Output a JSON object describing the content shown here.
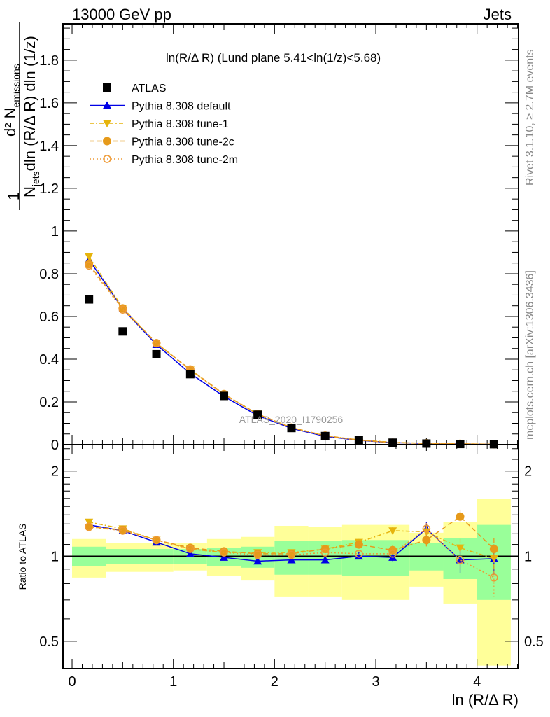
{
  "chart_data": [
    {
      "type": "scatter",
      "panel": "main",
      "header_left": "13000 GeV pp",
      "header_right": "Jets",
      "title": "ln(R/Δ R) (Lund plane 5.41<ln(1/z)<5.68)",
      "ylabel_num": "d² N",
      "ylabel_num_sub": "emissions",
      "ylabel_one": "1",
      "ylabel_den_N": "N",
      "ylabel_den_sub": "jets",
      "ylabel_den_rest": "dln (R/Δ R) dln (1/z)",
      "side_text_1": "Rivet 3.1.10, ≥ 2.7M events",
      "side_text_2": "mcplots.cern.ch [arXiv:1306.3436]",
      "watermark": "ATLAS_2020_I1790256",
      "xlim": [
        -0.09,
        4.41
      ],
      "ylim": [
        0,
        1.97
      ],
      "yticks": [
        0,
        0.2,
        0.4,
        0.6,
        0.8,
        1,
        1.2,
        1.4,
        1.6,
        1.8
      ],
      "ytick_labels": [
        "0",
        "0.2",
        "0.4",
        "0.6",
        "0.8",
        "1",
        "1.2",
        "1.4",
        "1.6",
        "1.8"
      ],
      "x": [
        0.167,
        0.5,
        0.833,
        1.167,
        1.5,
        1.833,
        2.167,
        2.5,
        2.833,
        3.167,
        3.5,
        3.833,
        4.167
      ],
      "legend": [
        "ATLAS",
        "Pythia 8.308 default",
        "Pythia 8.308 tune-1",
        "Pythia 8.308 tune-2c",
        "Pythia 8.308 tune-2m"
      ],
      "legend_position": "top-left",
      "series": [
        {
          "name": "ATLAS",
          "color": "#000000",
          "marker": "square",
          "line": "none",
          "values": [
            0.68,
            0.53,
            0.423,
            0.33,
            0.228,
            0.14,
            0.078,
            0.04,
            0.02,
            0.009,
            0.005,
            0.003,
            0.002
          ]
        },
        {
          "name": "Pythia 8.308 default",
          "color": "#0000e6",
          "marker": "triangle-up",
          "line": "solid",
          "values": [
            0.866,
            0.636,
            0.468,
            0.333,
            0.226,
            0.136,
            0.076,
            0.039,
            0.02,
            0.009,
            0.006,
            0.003,
            0.002
          ]
        },
        {
          "name": "Pythia 8.308 tune-1",
          "color": "#e6b40c",
          "marker": "triangle-down",
          "line": "dashdot",
          "values": [
            0.88,
            0.64,
            0.475,
            0.35,
            0.235,
            0.144,
            0.08,
            0.042,
            0.022,
            0.011,
            0.006,
            0.003,
            0.002
          ]
        },
        {
          "name": "Pythia 8.308 tune-2c",
          "color": "#e69a1a",
          "marker": "circle",
          "line": "dashed",
          "values": [
            0.845,
            0.638,
            0.475,
            0.352,
            0.237,
            0.143,
            0.08,
            0.042,
            0.022,
            0.009,
            0.006,
            0.004,
            0.002
          ]
        },
        {
          "name": "Pythia 8.308 tune-2m",
          "color": "#ee9933",
          "marker": "open-circle",
          "line": "dotted",
          "values": [
            0.838,
            0.632,
            0.474,
            0.35,
            0.235,
            0.141,
            0.079,
            0.041,
            0.02,
            0.009,
            0.006,
            0.003,
            0.002
          ]
        }
      ]
    },
    {
      "type": "line",
      "panel": "ratio",
      "ylabel": "Ratio to ATLAS",
      "xlabel": "ln (R/Δ R)",
      "yscale": "log",
      "xlim": [
        -0.09,
        4.41
      ],
      "ylim": [
        0.4,
        2.48
      ],
      "yticks": [
        0.5,
        1,
        2
      ],
      "ytick_labels": [
        "0.5",
        "1",
        "2"
      ],
      "xticks": [
        0,
        1,
        2,
        3,
        4
      ],
      "xtick_labels": [
        "0",
        "1",
        "2",
        "3",
        "4"
      ],
      "bin_edges": [
        0,
        0.333,
        0.667,
        1,
        1.333,
        1.667,
        2,
        2.333,
        2.667,
        3,
        3.333,
        3.667,
        4,
        4.333
      ],
      "band_inner": {
        "color": "#99ff99",
        "low": [
          0.92,
          0.94,
          0.94,
          0.94,
          0.92,
          0.91,
          0.86,
          0.86,
          0.85,
          0.85,
          0.89,
          0.83,
          0.7
        ],
        "high": [
          1.08,
          1.06,
          1.06,
          1.06,
          1.07,
          1.08,
          1.13,
          1.13,
          1.14,
          1.14,
          1.11,
          1.16,
          1.29
        ]
      },
      "band_outer": {
        "color": "#ffff99",
        "low": [
          0.84,
          0.88,
          0.88,
          0.89,
          0.85,
          0.82,
          0.72,
          0.72,
          0.7,
          0.7,
          0.78,
          0.68,
          0.41
        ],
        "high": [
          1.15,
          1.11,
          1.11,
          1.11,
          1.15,
          1.17,
          1.28,
          1.27,
          1.29,
          1.29,
          1.21,
          1.32,
          1.59
        ]
      },
      "x": [
        0.167,
        0.5,
        0.833,
        1.167,
        1.5,
        1.833,
        2.167,
        2.5,
        2.833,
        3.167,
        3.5,
        3.833,
        4.167
      ],
      "series": [
        {
          "name": "Pythia 8.308 default",
          "color": "#0000e6",
          "marker": "triangle-up",
          "line": "solid",
          "values": [
            1.29,
            1.23,
            1.12,
            1.02,
            0.99,
            0.96,
            0.97,
            0.97,
            1.0,
            0.99,
            1.25,
            0.97,
            0.98
          ],
          "err": [
            0.01,
            0.01,
            0.01,
            0.01,
            0.01,
            0.01,
            0.01,
            0.01,
            0.02,
            0.03,
            0.07,
            0.1,
            0.12
          ]
        },
        {
          "name": "Pythia 8.308 tune-1",
          "color": "#e6b40c",
          "marker": "triangle-down",
          "line": "dashdot",
          "values": [
            1.32,
            1.25,
            1.14,
            1.06,
            1.03,
            1.03,
            1.03,
            1.06,
            1.12,
            1.23,
            1.22,
            1.07,
            0.98
          ],
          "err": [
            0.01,
            0.01,
            0.01,
            0.01,
            0.01,
            0.01,
            0.01,
            0.02,
            0.03,
            0.04,
            0.06,
            0.08,
            0.12
          ]
        },
        {
          "name": "Pythia 8.308 tune-2c",
          "color": "#e69a1a",
          "marker": "circle",
          "line": "dashed",
          "values": [
            1.27,
            1.24,
            1.14,
            1.07,
            1.04,
            1.02,
            1.02,
            1.06,
            1.1,
            1.05,
            1.14,
            1.38,
            1.06
          ],
          "err": [
            0.01,
            0.01,
            0.01,
            0.01,
            0.01,
            0.01,
            0.01,
            0.02,
            0.03,
            0.04,
            0.06,
            0.08,
            0.1
          ]
        },
        {
          "name": "Pythia 8.308 tune-2m",
          "color": "#ee9933",
          "marker": "open-circle",
          "line": "dotted",
          "values": [
            1.27,
            1.23,
            1.14,
            1.06,
            1.03,
            1.01,
            1.01,
            1.03,
            1.02,
            1.02,
            1.25,
            0.97,
            0.84
          ],
          "err": [
            0.01,
            0.01,
            0.01,
            0.01,
            0.01,
            0.01,
            0.01,
            0.02,
            0.03,
            0.04,
            0.06,
            0.08,
            0.12
          ]
        }
      ]
    }
  ]
}
